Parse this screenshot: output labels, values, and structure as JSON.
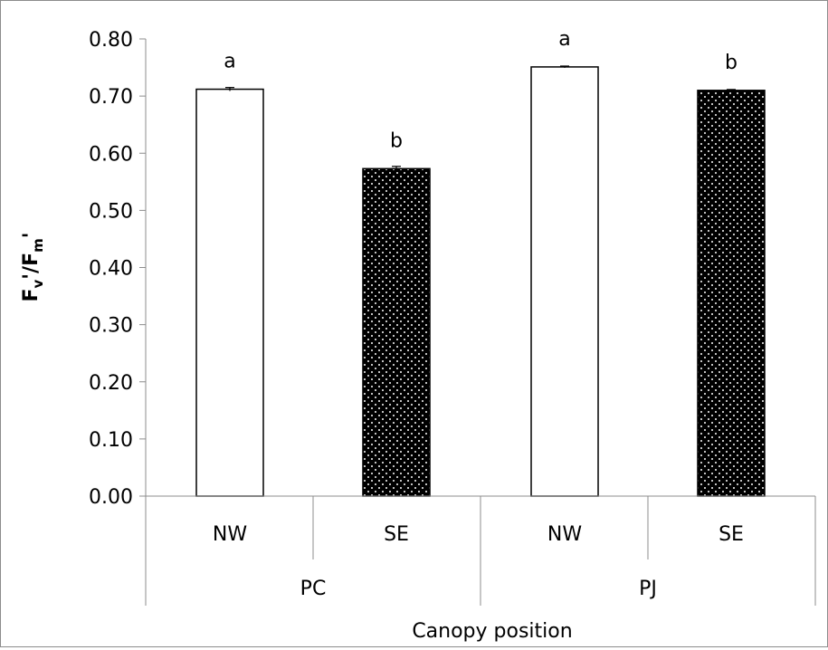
{
  "chart_data": {
    "type": "bar",
    "ylabel": "Fv'/Fm'",
    "ylabel_parts": {
      "main": "F",
      "sub1": "v",
      "sep": "'/F",
      "sub2": "m",
      "tail": "'"
    },
    "xlabel": "Canopy position",
    "ylim": [
      0,
      0.8
    ],
    "yticks": [
      "0.00",
      "0.10",
      "0.20",
      "0.30",
      "0.40",
      "0.50",
      "0.60",
      "0.70",
      "0.80"
    ],
    "ytick_values": [
      0,
      0.1,
      0.2,
      0.3,
      0.4,
      0.5,
      0.6,
      0.7,
      0.8
    ],
    "categories": [
      "NW",
      "SE",
      "NW",
      "SE"
    ],
    "groups": [
      "PC",
      "PJ"
    ],
    "values": [
      0.712,
      0.573,
      0.751,
      0.71
    ],
    "errors": [
      0.003,
      0.004,
      0.0015,
      0.0015
    ],
    "significance_letters": [
      "a",
      "b",
      "a",
      "b"
    ],
    "bar_fills": [
      "white",
      "dotted-black",
      "white",
      "dotted-black"
    ],
    "grid": false,
    "legend": "none"
  },
  "colors": {
    "frame": "#8c8c8c",
    "axis": "#8c8c8c",
    "bar_fill_dark": "#000000",
    "bar_fill_light": "#ffffff",
    "dots": "#ffffff"
  }
}
